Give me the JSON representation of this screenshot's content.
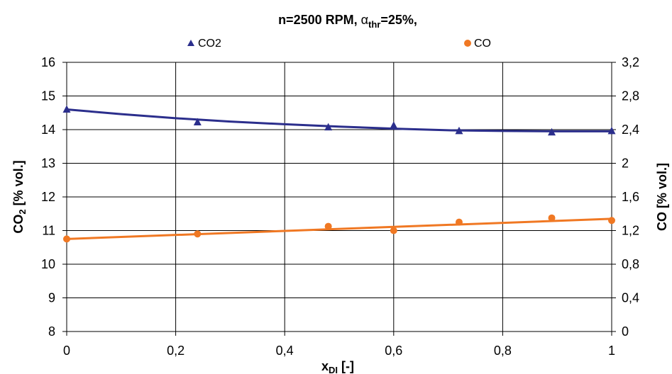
{
  "chart_data": {
    "type": "line",
    "title": {
      "prefix": "n=2500 RPM, ",
      "alpha_symbol": "α",
      "alpha_sub": "thr",
      "suffix": "=25%,"
    },
    "xlabel": {
      "main": "x",
      "sub": "DI",
      "suffix": " [-]"
    },
    "ylabel_left": {
      "main": "CO",
      "sub": "2",
      "suffix": " [% vol.]"
    },
    "ylabel_right": "CO [% vol.]",
    "xlim": [
      0,
      1
    ],
    "ylim_left": [
      8,
      16
    ],
    "ylim_right": [
      0,
      3.2
    ],
    "x_ticks": [
      "0",
      "0,2",
      "0,4",
      "0,6",
      "0,8",
      "1"
    ],
    "y_left_ticks": [
      "8",
      "9",
      "10",
      "11",
      "12",
      "13",
      "14",
      "15",
      "16"
    ],
    "y_right_ticks": [
      "0",
      "0,4",
      "0,8",
      "1,2",
      "1,6",
      "2",
      "2,4",
      "2,8",
      "3,2"
    ],
    "grid": true,
    "legend": {
      "placement": "top"
    },
    "series": [
      {
        "name": "CO2",
        "axis": "left",
        "marker": "triangle",
        "color": "#2B2E8C",
        "points": [
          [
            0,
            14.6
          ],
          [
            0.24,
            14.22
          ],
          [
            0.48,
            14.07
          ],
          [
            0.6,
            14.12
          ],
          [
            0.72,
            13.96
          ],
          [
            0.89,
            13.92
          ],
          [
            1.0,
            13.96
          ]
        ],
        "trend": [
          [
            0,
            14.6
          ],
          [
            0.1,
            14.46
          ],
          [
            0.2,
            14.34
          ],
          [
            0.3,
            14.24
          ],
          [
            0.4,
            14.16
          ],
          [
            0.5,
            14.09
          ],
          [
            0.6,
            14.03
          ],
          [
            0.7,
            13.98
          ],
          [
            0.8,
            13.96
          ],
          [
            0.9,
            13.95
          ],
          [
            1.0,
            13.95
          ]
        ]
      },
      {
        "name": "CO",
        "axis": "right",
        "marker": "circle",
        "color": "#F07823",
        "points": [
          [
            0,
            1.1
          ],
          [
            0.24,
            1.16
          ],
          [
            0.48,
            1.25
          ],
          [
            0.6,
            1.2
          ],
          [
            0.72,
            1.3
          ],
          [
            0.89,
            1.35
          ],
          [
            1.0,
            1.32
          ]
        ],
        "trend": [
          [
            0,
            1.1
          ],
          [
            1.0,
            1.34
          ]
        ]
      }
    ]
  }
}
